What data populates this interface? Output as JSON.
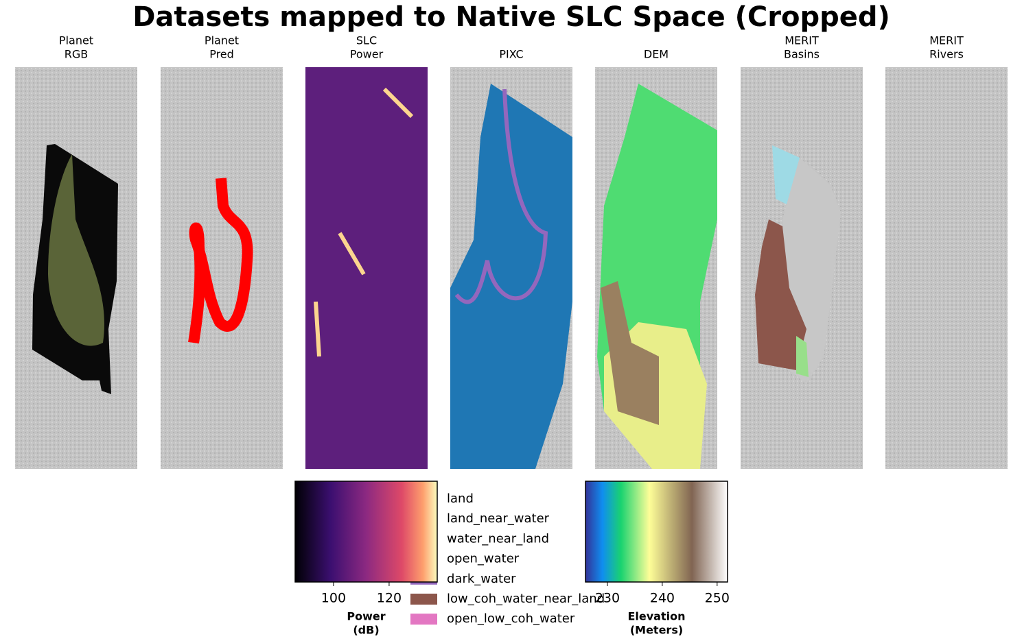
{
  "title": "Datasets mapped to Native SLC Space (Cropped)",
  "panels": [
    {
      "title": [
        "Planet",
        "RGB"
      ]
    },
    {
      "title": [
        "Planet",
        "Pred"
      ]
    },
    {
      "title": [
        "SLC",
        "Power"
      ]
    },
    {
      "title": [
        "PIXC"
      ]
    },
    {
      "title": [
        "DEM"
      ]
    },
    {
      "title": [
        "MERIT",
        "Basins"
      ]
    },
    {
      "title": [
        "MERIT",
        "Rivers"
      ]
    }
  ],
  "power_colorbar": {
    "label": [
      "Power",
      "(dB)"
    ],
    "lim": [
      86.2,
      137.3
    ],
    "ticks": [
      100,
      120
    ]
  },
  "elevation_colorbar": {
    "label": [
      "Elevation",
      "(Meters)"
    ],
    "lim": [
      226,
      251.9
    ],
    "ticks": [
      230,
      240,
      250
    ]
  },
  "legend": [
    {
      "name": "land",
      "color": "#1f77b4"
    },
    {
      "name": "land_near_water",
      "color": "#ff7f0e"
    },
    {
      "name": "water_near_land",
      "color": "#2ca02c"
    },
    {
      "name": "open_water",
      "color": "#d62728"
    },
    {
      "name": "dark_water",
      "color": "#9467bd"
    },
    {
      "name": "low_coh_water_near_land",
      "color": "#8c564b"
    },
    {
      "name": "open_low_coh_water",
      "color": "#e377c2"
    }
  ]
}
